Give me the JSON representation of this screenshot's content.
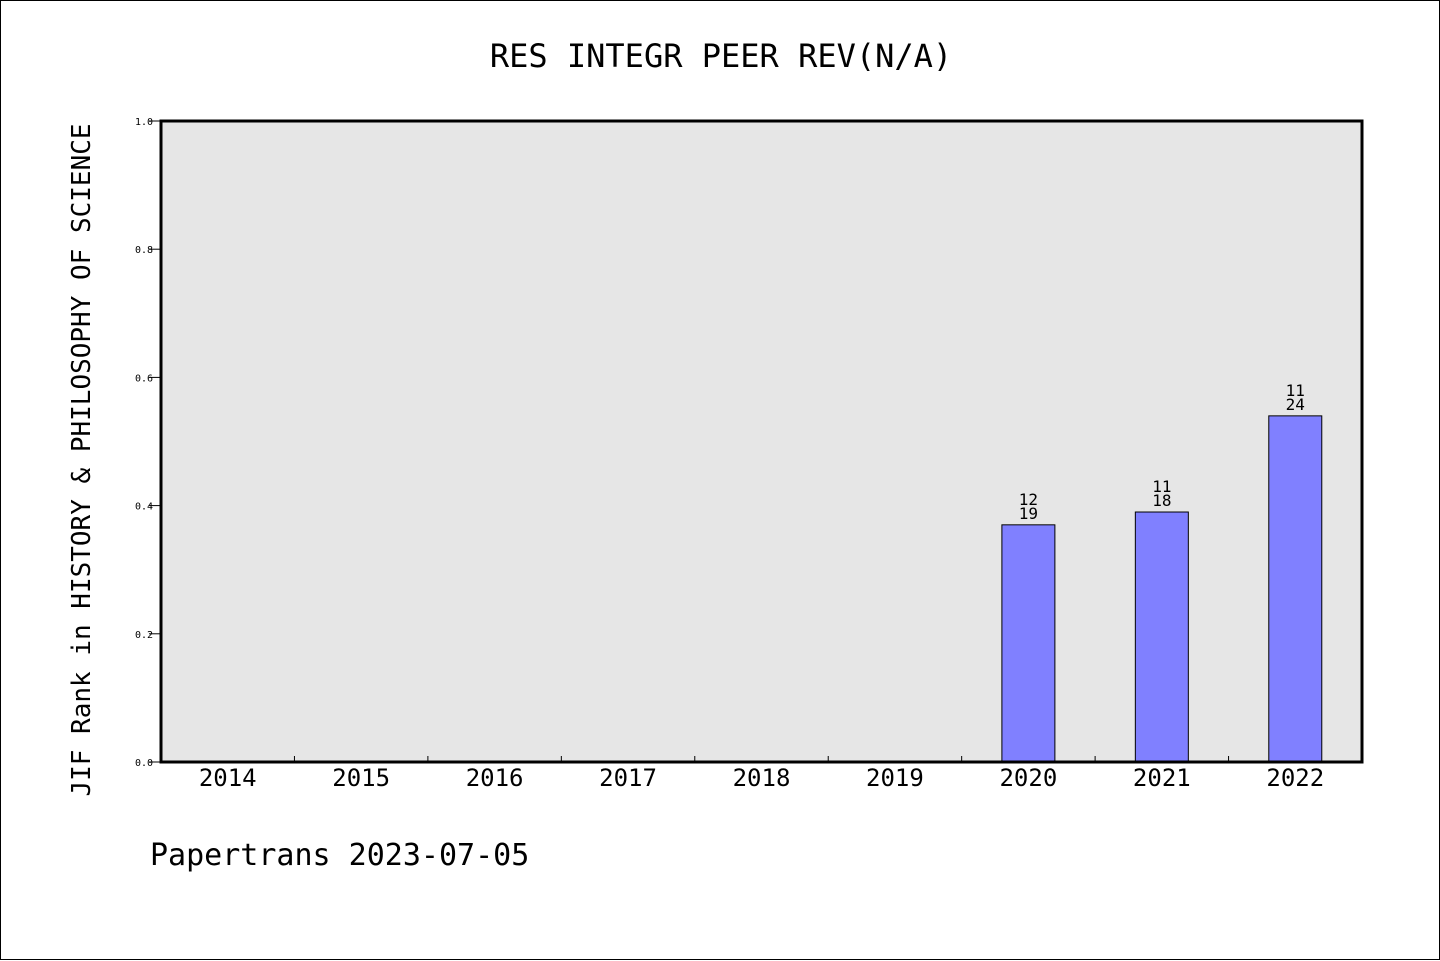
{
  "chart_data": {
    "type": "bar",
    "title": "RES INTEGR PEER REV(N/A)",
    "ylabel": "JIF Rank in HISTORY & PHILOSOPHY OF SCIENCE",
    "xlabel": "",
    "ylim": [
      0,
      1.0
    ],
    "yticks": [
      "0.0",
      "0.2",
      "0.4",
      "0.6",
      "0.8",
      "1.0"
    ],
    "grid": false,
    "categories": [
      "2014",
      "2015",
      "2016",
      "2017",
      "2018",
      "2019",
      "2020",
      "2021",
      "2022"
    ],
    "values": [
      null,
      null,
      null,
      null,
      null,
      null,
      0.37,
      0.39,
      0.54
    ],
    "bar_labels": [
      null,
      null,
      null,
      null,
      null,
      null,
      {
        "rank": "12",
        "total": "19"
      },
      {
        "rank": "11",
        "total": "18"
      },
      {
        "rank": "11",
        "total": "24"
      }
    ],
    "colors": {
      "bar": "#8080ff",
      "plot_background": "#e6e6e6"
    }
  },
  "footer": "Papertrans 2023-07-05"
}
